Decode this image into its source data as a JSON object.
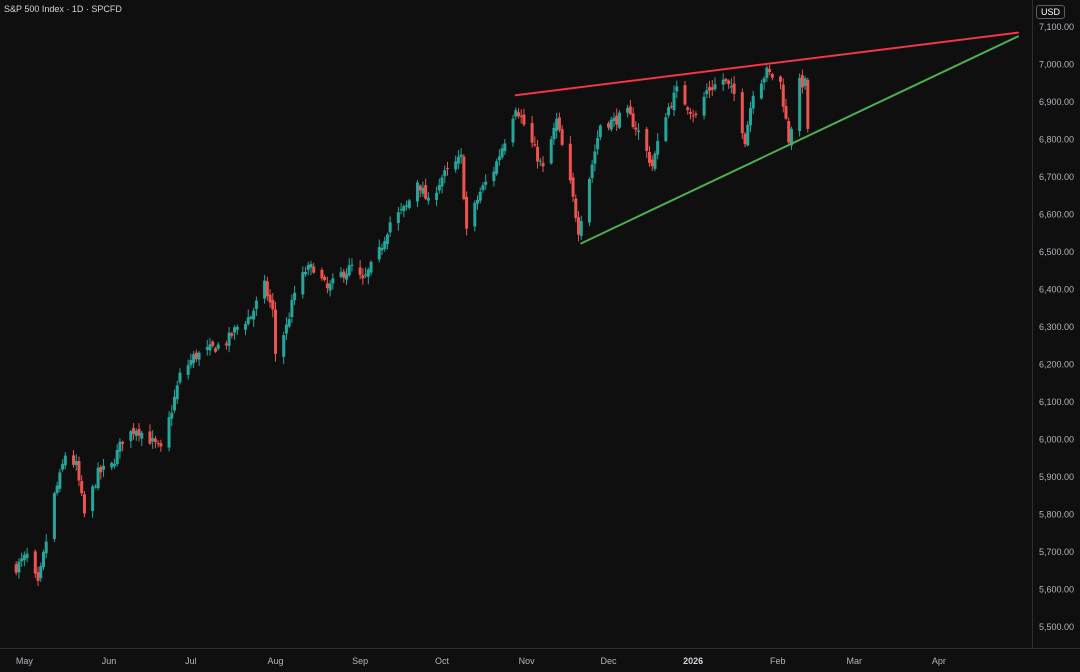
{
  "header": {
    "title": "S&P 500 Index · 1D · SPCFD",
    "currency": "USD"
  },
  "colors": {
    "up": "#26a69a",
    "down": "#ef5350",
    "resistance": "#f23645",
    "support": "#4caf50",
    "background": "#0f0f0f"
  },
  "chart_data": {
    "type": "candlestick",
    "title": "S&P 500 Index · 1D · SPCFD",
    "ylim": [
      5480,
      7130
    ],
    "y_ticks": [
      "7,100.00",
      "7,000.00",
      "6,900.00",
      "6,800.00",
      "6,700.00",
      "6,600.00",
      "6,500.00",
      "6,400.00",
      "6,300.00",
      "6,200.00",
      "6,100.00",
      "6,000.00",
      "5,900.00",
      "5,800.00",
      "5,700.00",
      "5,600.00",
      "5,500.00"
    ],
    "x_ticks": [
      {
        "label": "May",
        "date": "2025-05-01"
      },
      {
        "label": "Jun",
        "date": "2025-06-01"
      },
      {
        "label": "Jul",
        "date": "2025-07-01"
      },
      {
        "label": "Aug",
        "date": "2025-08-01"
      },
      {
        "label": "Sep",
        "date": "2025-09-01"
      },
      {
        "label": "Oct",
        "date": "2025-10-01"
      },
      {
        "label": "Nov",
        "date": "2025-11-01"
      },
      {
        "label": "Dec",
        "date": "2025-12-01"
      },
      {
        "label": "2026",
        "date": "2026-01-01",
        "bold": true
      },
      {
        "label": "Feb",
        "date": "2026-02-01"
      },
      {
        "label": "Mar",
        "date": "2026-03-01"
      },
      {
        "label": "Apr",
        "date": "2026-04-01"
      }
    ],
    "x_range": [
      "2025-04-25",
      "2026-04-30"
    ],
    "close_series": [
      [
        "2025-04-28",
        5660
      ],
      [
        "2025-05-02",
        5690
      ],
      [
        "2025-05-06",
        5610
      ],
      [
        "2025-05-12",
        5850
      ],
      [
        "2025-05-14",
        5900
      ],
      [
        "2025-05-16",
        5960
      ],
      [
        "2025-05-20",
        5930
      ],
      [
        "2025-05-23",
        5800
      ],
      [
        "2025-05-28",
        5910
      ],
      [
        "2025-06-02",
        5930
      ],
      [
        "2025-06-06",
        6000
      ],
      [
        "2025-06-11",
        6030
      ],
      [
        "2025-06-16",
        6000
      ],
      [
        "2025-06-20",
        5970
      ],
      [
        "2025-06-24",
        6080
      ],
      [
        "2025-06-27",
        6170
      ],
      [
        "2025-07-02",
        6220
      ],
      [
        "2025-07-08",
        6240
      ],
      [
        "2025-07-14",
        6260
      ],
      [
        "2025-07-18",
        6300
      ],
      [
        "2025-07-23",
        6330
      ],
      [
        "2025-07-28",
        6410
      ],
      [
        "2025-07-31",
        6340
      ],
      [
        "2025-08-01",
        6230
      ],
      [
        "2025-08-05",
        6300
      ],
      [
        "2025-08-08",
        6390
      ],
      [
        "2025-08-12",
        6450
      ],
      [
        "2025-08-15",
        6460
      ],
      [
        "2025-08-20",
        6400
      ],
      [
        "2025-08-25",
        6440
      ],
      [
        "2025-08-29",
        6460
      ],
      [
        "2025-09-02",
        6420
      ],
      [
        "2025-09-08",
        6500
      ],
      [
        "2025-09-12",
        6580
      ],
      [
        "2025-09-18",
        6620
      ],
      [
        "2025-09-22",
        6690
      ],
      [
        "2025-09-26",
        6630
      ],
      [
        "2025-10-01",
        6700
      ],
      [
        "2025-10-08",
        6750
      ],
      [
        "2025-10-10",
        6560
      ],
      [
        "2025-10-15",
        6660
      ],
      [
        "2025-10-20",
        6720
      ],
      [
        "2025-10-24",
        6800
      ],
      [
        "2025-10-28",
        6890
      ],
      [
        "2025-10-31",
        6840
      ],
      [
        "2025-11-04",
        6770
      ],
      [
        "2025-11-07",
        6720
      ],
      [
        "2025-11-12",
        6850
      ],
      [
        "2025-11-17",
        6680
      ],
      [
        "2025-11-20",
        6560
      ],
      [
        "2025-11-24",
        6700
      ],
      [
        "2025-11-28",
        6840
      ],
      [
        "2025-12-03",
        6850
      ],
      [
        "2025-12-08",
        6870
      ],
      [
        "2025-12-12",
        6820
      ],
      [
        "2025-12-17",
        6730
      ],
      [
        "2025-12-22",
        6870
      ],
      [
        "2025-12-26",
        6930
      ],
      [
        "2026-01-02",
        6860
      ],
      [
        "2026-01-06",
        6930
      ],
      [
        "2026-01-12",
        6960
      ],
      [
        "2026-01-16",
        6920
      ],
      [
        "2026-01-20",
        6800
      ],
      [
        "2026-01-23",
        6930
      ],
      [
        "2026-01-28",
        6980
      ],
      [
        "2026-02-02",
        6950
      ],
      [
        "2026-02-05",
        6800
      ],
      [
        "2026-02-09",
        6950
      ],
      [
        "2026-02-11",
        6950
      ],
      [
        "2026-02-12",
        6830
      ]
    ],
    "trendlines": [
      {
        "name": "resistance",
        "color": "#f23645",
        "from": [
          "2025-10-28",
          6918
        ],
        "to": [
          "2026-04-30",
          7085
        ]
      },
      {
        "name": "support",
        "color": "#4caf50",
        "from": [
          "2025-11-21",
          6523
        ],
        "to": [
          "2026-04-30",
          7075
        ]
      }
    ]
  }
}
